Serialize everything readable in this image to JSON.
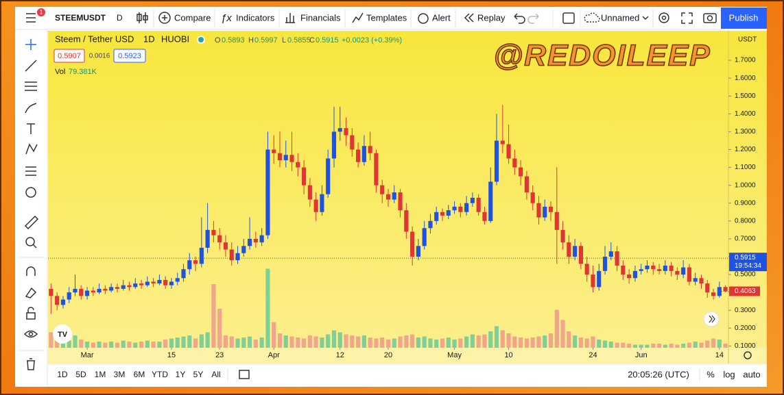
{
  "toolbar": {
    "symbol": "STEEMUSDT",
    "interval": "D",
    "badge": "1",
    "compare": "Compare",
    "indicators": "Indicators",
    "financials": "Financials",
    "templates": "Templates",
    "alert": "Alert",
    "replay": "Replay",
    "layout": "Unnamed",
    "publish": "Publish"
  },
  "legend": {
    "name": "Steem / Tether USD",
    "interval": "1D",
    "exchange": "HUOBI",
    "o_label": "O",
    "open": 0.5893,
    "h_label": "H",
    "high": 0.5997,
    "l_label": "L",
    "low": 0.5855,
    "c_label": "C",
    "close": 0.5915,
    "change": "+0.0023 (+0.39%)",
    "sell": 0.5907,
    "spread": 0.0016,
    "buy": 0.5923,
    "vol_label": "Vol",
    "vol": "79.381K"
  },
  "watermark": "@REDOILEEP",
  "chart_data": {
    "type": "candlestick",
    "currency": "USDT",
    "up_color": "#1f52e0",
    "down_color": "#e03535",
    "volume_up_color": "#7fcf98",
    "volume_down_color": "#f2a48c",
    "xlim": [
      -0.5,
      112.5
    ],
    "ylim": [
      0.09,
      1.865
    ],
    "vlim": [
      0,
      1000
    ],
    "xticks": [
      {
        "value": 6,
        "label": "Mar"
      },
      {
        "value": 20,
        "label": "15"
      },
      {
        "value": 28,
        "label": "23"
      },
      {
        "value": 37,
        "label": "Apr"
      },
      {
        "value": 48,
        "label": "12"
      },
      {
        "value": 56,
        "label": "20"
      },
      {
        "value": 67,
        "label": "May"
      },
      {
        "value": 76,
        "label": "10"
      },
      {
        "value": 90,
        "label": "24"
      },
      {
        "value": 98,
        "label": "Jun"
      },
      {
        "value": 111,
        "label": "14"
      }
    ],
    "yticks": [
      {
        "value": 0.1,
        "label": "0.1000"
      },
      {
        "value": 0.2,
        "label": "0.2000"
      },
      {
        "value": 0.3,
        "label": "0.3000"
      },
      {
        "value": 0.4,
        "label": "0.4000"
      },
      {
        "value": 0.5,
        "label": "0.5000"
      },
      {
        "value": 0.6,
        "label": "0.6000"
      },
      {
        "value": 0.7,
        "label": "0.7000"
      },
      {
        "value": 0.8,
        "label": "0.8000"
      },
      {
        "value": 0.9,
        "label": "0.9000"
      },
      {
        "value": 1.0,
        "label": "1.0000"
      },
      {
        "value": 1.1,
        "label": "1.1000"
      },
      {
        "value": 1.2,
        "label": "1.2000"
      },
      {
        "value": 1.3,
        "label": "1.3000"
      },
      {
        "value": 1.4,
        "label": "1.4000"
      },
      {
        "value": 1.5,
        "label": "1.5000"
      },
      {
        "value": 1.6,
        "label": "1.6000"
      },
      {
        "value": 1.7,
        "label": "1.7000"
      }
    ],
    "crosshair_price": 0.5915,
    "crosshair_time": "19:54:34",
    "last_price": 0.4063,
    "x": [
      0,
      1,
      2,
      3,
      4,
      5,
      6,
      7,
      8,
      9,
      10,
      11,
      12,
      13,
      14,
      15,
      16,
      17,
      18,
      19,
      20,
      21,
      22,
      23,
      24,
      25,
      26,
      27,
      28,
      29,
      30,
      31,
      32,
      33,
      34,
      35,
      36,
      37,
      38,
      39,
      40,
      41,
      42,
      43,
      44,
      45,
      46,
      47,
      48,
      49,
      50,
      51,
      52,
      53,
      54,
      55,
      56,
      57,
      58,
      59,
      60,
      61,
      62,
      63,
      64,
      65,
      66,
      67,
      68,
      69,
      70,
      71,
      72,
      73,
      74,
      75,
      76,
      77,
      78,
      79,
      80,
      81,
      82,
      83,
      84,
      85,
      86,
      87,
      88,
      89,
      90,
      91,
      92,
      93,
      94,
      95,
      96,
      97,
      98,
      99,
      100,
      101,
      102,
      103,
      104,
      105,
      106,
      107,
      108,
      109,
      110,
      111,
      112
    ],
    "candles": [
      [
        0.42,
        0.45,
        0.28,
        0.38
      ],
      [
        0.38,
        0.4,
        0.3,
        0.33
      ],
      [
        0.33,
        0.38,
        0.31,
        0.36
      ],
      [
        0.36,
        0.43,
        0.34,
        0.4
      ],
      [
        0.4,
        0.5,
        0.38,
        0.42
      ],
      [
        0.42,
        0.44,
        0.36,
        0.38
      ],
      [
        0.38,
        0.43,
        0.36,
        0.41
      ],
      [
        0.41,
        0.43,
        0.38,
        0.4
      ],
      [
        0.4,
        0.45,
        0.39,
        0.42
      ],
      [
        0.42,
        0.44,
        0.39,
        0.41
      ],
      [
        0.41,
        0.45,
        0.4,
        0.43
      ],
      [
        0.43,
        0.45,
        0.4,
        0.42
      ],
      [
        0.42,
        0.47,
        0.41,
        0.44
      ],
      [
        0.44,
        0.46,
        0.41,
        0.43
      ],
      [
        0.43,
        0.48,
        0.42,
        0.45
      ],
      [
        0.45,
        0.47,
        0.42,
        0.44
      ],
      [
        0.44,
        0.49,
        0.43,
        0.46
      ],
      [
        0.46,
        0.48,
        0.43,
        0.45
      ],
      [
        0.45,
        0.5,
        0.44,
        0.47
      ],
      [
        0.47,
        0.49,
        0.42,
        0.44
      ],
      [
        0.44,
        0.48,
        0.42,
        0.46
      ],
      [
        0.46,
        0.51,
        0.44,
        0.48
      ],
      [
        0.48,
        0.56,
        0.46,
        0.53
      ],
      [
        0.53,
        0.62,
        0.5,
        0.58
      ],
      [
        0.58,
        0.6,
        0.52,
        0.56
      ],
      [
        0.56,
        0.82,
        0.54,
        0.65
      ],
      [
        0.65,
        0.9,
        0.62,
        0.75
      ],
      [
        0.75,
        0.8,
        0.68,
        0.72
      ],
      [
        0.72,
        0.76,
        0.64,
        0.68
      ],
      [
        0.68,
        0.72,
        0.6,
        0.64
      ],
      [
        0.64,
        0.68,
        0.55,
        0.58
      ],
      [
        0.58,
        0.66,
        0.56,
        0.62
      ],
      [
        0.62,
        0.7,
        0.6,
        0.66
      ],
      [
        0.66,
        0.82,
        0.64,
        0.7
      ],
      [
        0.7,
        0.74,
        0.65,
        0.68
      ],
      [
        0.68,
        0.76,
        0.66,
        0.72
      ],
      [
        0.72,
        1.3,
        0.7,
        1.2
      ],
      [
        1.2,
        1.28,
        1.12,
        1.18
      ],
      [
        1.18,
        1.3,
        1.1,
        1.14
      ],
      [
        1.14,
        1.25,
        1.1,
        1.17
      ],
      [
        1.17,
        1.3,
        1.08,
        1.13
      ],
      [
        1.13,
        1.18,
        1.05,
        1.1
      ],
      [
        1.1,
        1.14,
        0.95,
        1.0
      ],
      [
        1.0,
        1.04,
        0.88,
        0.92
      ],
      [
        0.92,
        0.96,
        0.8,
        0.85
      ],
      [
        0.85,
        1.0,
        0.83,
        0.95
      ],
      [
        0.95,
        1.2,
        0.93,
        1.15
      ],
      [
        1.15,
        1.44,
        1.1,
        1.3
      ],
      [
        1.3,
        1.44,
        1.25,
        1.32
      ],
      [
        1.32,
        1.38,
        1.22,
        1.28
      ],
      [
        1.28,
        1.32,
        1.16,
        1.2
      ],
      [
        1.2,
        1.24,
        1.1,
        1.13
      ],
      [
        1.13,
        1.28,
        1.11,
        1.22
      ],
      [
        1.22,
        1.3,
        1.14,
        1.18
      ],
      [
        1.18,
        1.2,
        0.96,
        1.0
      ],
      [
        1.0,
        1.03,
        0.9,
        0.95
      ],
      [
        0.95,
        0.98,
        0.88,
        0.92
      ],
      [
        0.92,
        1.0,
        0.9,
        0.96
      ],
      [
        0.96,
        0.98,
        0.82,
        0.86
      ],
      [
        0.86,
        0.9,
        0.7,
        0.74
      ],
      [
        0.74,
        0.77,
        0.55,
        0.6
      ],
      [
        0.6,
        0.7,
        0.58,
        0.66
      ],
      [
        0.66,
        0.8,
        0.64,
        0.76
      ],
      [
        0.76,
        0.84,
        0.73,
        0.8
      ],
      [
        0.8,
        0.88,
        0.78,
        0.85
      ],
      [
        0.85,
        0.87,
        0.8,
        0.83
      ],
      [
        0.83,
        0.89,
        0.81,
        0.86
      ],
      [
        0.86,
        0.91,
        0.84,
        0.88
      ],
      [
        0.88,
        0.9,
        0.82,
        0.85
      ],
      [
        0.85,
        0.94,
        0.83,
        0.9
      ],
      [
        0.9,
        0.96,
        0.88,
        0.93
      ],
      [
        0.93,
        0.95,
        0.83,
        0.85
      ],
      [
        0.85,
        0.88,
        0.78,
        0.8
      ],
      [
        0.8,
        1.1,
        0.79,
        1.02
      ],
      [
        1.02,
        1.4,
        1.0,
        1.25
      ],
      [
        1.25,
        1.45,
        1.18,
        1.23
      ],
      [
        1.23,
        1.34,
        1.12,
        1.15
      ],
      [
        1.15,
        1.2,
        1.06,
        1.1
      ],
      [
        1.1,
        1.14,
        1.0,
        1.05
      ],
      [
        1.05,
        1.08,
        0.92,
        0.96
      ],
      [
        0.96,
        1.0,
        0.86,
        0.9
      ],
      [
        0.9,
        0.94,
        0.78,
        0.82
      ],
      [
        0.82,
        0.92,
        0.8,
        0.88
      ],
      [
        0.88,
        0.91,
        0.8,
        0.85
      ],
      [
        0.85,
        1.1,
        0.56,
        0.75
      ],
      [
        0.75,
        0.8,
        0.64,
        0.68
      ],
      [
        0.68,
        0.72,
        0.56,
        0.6
      ],
      [
        0.6,
        0.7,
        0.58,
        0.66
      ],
      [
        0.66,
        0.68,
        0.53,
        0.56
      ],
      [
        0.56,
        0.6,
        0.46,
        0.5
      ],
      [
        0.5,
        0.55,
        0.4,
        0.43
      ],
      [
        0.43,
        0.56,
        0.41,
        0.52
      ],
      [
        0.52,
        0.66,
        0.5,
        0.6
      ],
      [
        0.6,
        0.68,
        0.58,
        0.63
      ],
      [
        0.63,
        0.66,
        0.52,
        0.55
      ],
      [
        0.55,
        0.58,
        0.47,
        0.5
      ],
      [
        0.5,
        0.53,
        0.45,
        0.48
      ],
      [
        0.48,
        0.55,
        0.46,
        0.52
      ],
      [
        0.52,
        0.56,
        0.5,
        0.53
      ],
      [
        0.53,
        0.58,
        0.51,
        0.55
      ],
      [
        0.55,
        0.57,
        0.5,
        0.53
      ],
      [
        0.53,
        0.56,
        0.5,
        0.52
      ],
      [
        0.52,
        0.58,
        0.5,
        0.55
      ],
      [
        0.55,
        0.57,
        0.49,
        0.52
      ],
      [
        0.52,
        0.54,
        0.47,
        0.5
      ],
      [
        0.5,
        0.58,
        0.48,
        0.54
      ],
      [
        0.54,
        0.56,
        0.44,
        0.46
      ],
      [
        0.46,
        0.51,
        0.44,
        0.48
      ],
      [
        0.48,
        0.5,
        0.42,
        0.45
      ],
      [
        0.45,
        0.47,
        0.37,
        0.4
      ],
      [
        0.4,
        0.42,
        0.36,
        0.38
      ],
      [
        0.38,
        0.46,
        0.37,
        0.43
      ],
      [
        0.43,
        0.44,
        0.4,
        0.4063
      ]
    ],
    "volume": [
      150,
      80,
      60,
      70,
      120,
      80,
      60,
      50,
      60,
      50,
      60,
      50,
      70,
      60,
      50,
      60,
      70,
      60,
      60,
      80,
      90,
      100,
      110,
      120,
      90,
      130,
      150,
      620,
      380,
      120,
      110,
      90,
      100,
      110,
      80,
      100,
      770,
      250,
      140,
      120,
      110,
      100,
      90,
      120,
      110,
      100,
      130,
      170,
      150,
      130,
      120,
      110,
      120,
      100,
      90,
      100,
      80,
      90,
      110,
      120,
      130,
      100,
      110,
      90,
      80,
      90,
      100,
      80,
      90,
      110,
      130,
      120,
      130,
      160,
      210,
      170,
      140,
      110,
      100,
      90,
      100,
      110,
      120,
      140,
      370,
      270,
      160,
      120,
      100,
      90,
      110,
      80,
      70,
      60,
      50,
      50,
      40,
      30,
      30,
      30,
      40,
      40,
      30,
      40,
      30,
      40,
      50,
      60,
      50,
      70,
      90,
      80,
      40
    ]
  },
  "bottom_bar": {
    "ranges": [
      "1D",
      "5D",
      "1M",
      "3M",
      "6M",
      "YTD",
      "1Y",
      "5Y",
      "All"
    ],
    "clock": "20:05:26 (UTC)",
    "percent": "%",
    "log": "log",
    "auto": "auto"
  }
}
